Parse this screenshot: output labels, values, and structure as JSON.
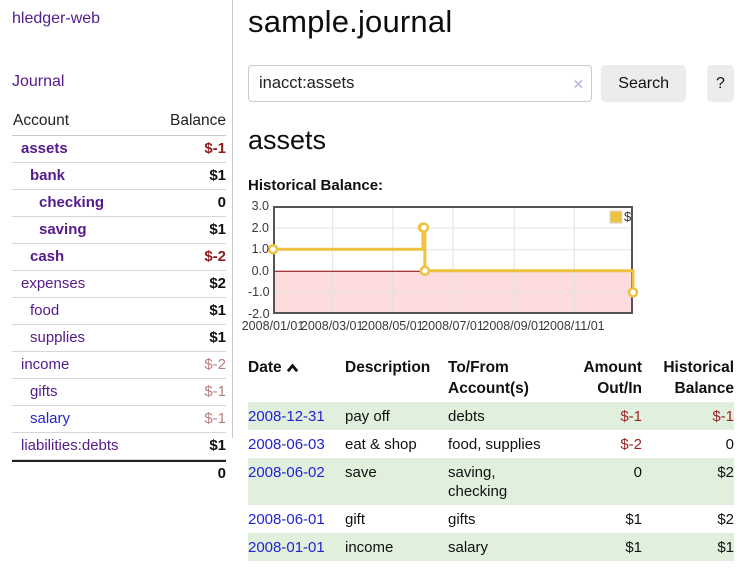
{
  "colors": {
    "purple_link": "#551a8b",
    "blue_link": "#2323d0",
    "negative_strong": "#8f1b1b",
    "negative_faded": "#b97e7e",
    "table_negative": "#9d2424",
    "row_green": "#e0f0dd",
    "chart_line": "#edc240",
    "chart_negative_region": "#fcdcdc",
    "chart_zero_line": "#8b0000",
    "chart_border": "#545454",
    "chart_grid": "#e2e2e2"
  },
  "sidebar": {
    "app_title": "hledger-web",
    "nav": {
      "journal_label": "Journal"
    },
    "accounts": {
      "headers": {
        "account": "Account",
        "balance": "Balance"
      },
      "rows": [
        {
          "name": "assets",
          "depth": 1,
          "bold": true,
          "balance": "$-1"
        },
        {
          "name": "bank",
          "depth": 2,
          "bold": true,
          "balance": "$1"
        },
        {
          "name": "checking",
          "depth": 3,
          "bold": true,
          "balance": "0"
        },
        {
          "name": "saving",
          "depth": 3,
          "bold": true,
          "balance": "$1"
        },
        {
          "name": "cash",
          "depth": 2,
          "bold": true,
          "balance": "$-2"
        },
        {
          "name": "expenses",
          "depth": 1,
          "bold": false,
          "balance": "$2"
        },
        {
          "name": "food",
          "depth": 2,
          "bold": false,
          "balance": "$1"
        },
        {
          "name": "supplies",
          "depth": 2,
          "bold": false,
          "balance": "$1"
        },
        {
          "name": "income",
          "depth": 1,
          "bold": false,
          "balance": "$-2"
        },
        {
          "name": "gifts",
          "depth": 2,
          "bold": false,
          "balance": "$-1"
        },
        {
          "name": "salary",
          "depth": 2,
          "bold": false,
          "balance": "$-1",
          "link": "blue"
        },
        {
          "name": "liabilities:debts",
          "depth": 1,
          "bold": false,
          "balance": "$1"
        }
      ],
      "total": "0"
    }
  },
  "main": {
    "title": "sample.journal",
    "search": {
      "query": "inacct:assets",
      "clear_icon": "×",
      "search_button": "Search",
      "help_button": "?"
    },
    "account_heading": "assets",
    "chart_heading": "Historical Balance:"
  },
  "chart_data": {
    "type": "line",
    "step": true,
    "title": "Historical Balance of assets",
    "legend": {
      "position": "top-right",
      "label": "$"
    },
    "xrange": [
      "2008-01-01",
      "2008-12-31"
    ],
    "ylim": [
      -2.0,
      3.0
    ],
    "yticks": [
      {
        "value": 3.0,
        "label": "3.0"
      },
      {
        "value": 2.0,
        "label": "2.0"
      },
      {
        "value": 1.0,
        "label": "1.0"
      },
      {
        "value": 0.0,
        "label": "0.0"
      },
      {
        "value": -1.0,
        "label": "-1.0"
      },
      {
        "value": -2.0,
        "label": "-2.0"
      }
    ],
    "xticks": [
      {
        "date": "2008-01-01",
        "label": "2008/01/01"
      },
      {
        "date": "2008-03-01",
        "label": "2008/03/01"
      },
      {
        "date": "2008-05-01",
        "label": "2008/05/01"
      },
      {
        "date": "2008-07-01",
        "label": "2008/07/01"
      },
      {
        "date": "2008-09-01",
        "label": "2008/09/01"
      },
      {
        "date": "2008-11-01",
        "label": "2008/11/01"
      }
    ],
    "series": [
      {
        "name": "$",
        "points": [
          {
            "date": "2008-01-01",
            "value": 1
          },
          {
            "date": "2008-06-01",
            "value": 2
          },
          {
            "date": "2008-06-02",
            "value": 2
          },
          {
            "date": "2008-06-03",
            "value": 0
          },
          {
            "date": "2008-12-31",
            "value": -1
          }
        ]
      }
    ],
    "grid": true,
    "negative_region_shaded": true
  },
  "register": {
    "headers": [
      "Date",
      "Description",
      "To/From\nAccount(s)",
      "Amount\nOut/In",
      "Historical\nBalance"
    ],
    "sort": {
      "column": "Date",
      "direction": "ascending"
    },
    "rows": [
      {
        "date": "2008-12-31",
        "description": "pay off",
        "accounts": "debts",
        "amount": "$-1",
        "balance": "$-1"
      },
      {
        "date": "2008-06-03",
        "description": "eat & shop",
        "accounts": "food, supplies",
        "amount": "$-2",
        "balance": "0"
      },
      {
        "date": "2008-06-02",
        "description": "save",
        "accounts": "saving, checking",
        "amount": "0",
        "balance": "$2"
      },
      {
        "date": "2008-06-01",
        "description": "gift",
        "accounts": "gifts",
        "amount": "$1",
        "balance": "$2"
      },
      {
        "date": "2008-01-01",
        "description": "income",
        "accounts": "salary",
        "amount": "$1",
        "balance": "$1"
      }
    ]
  }
}
